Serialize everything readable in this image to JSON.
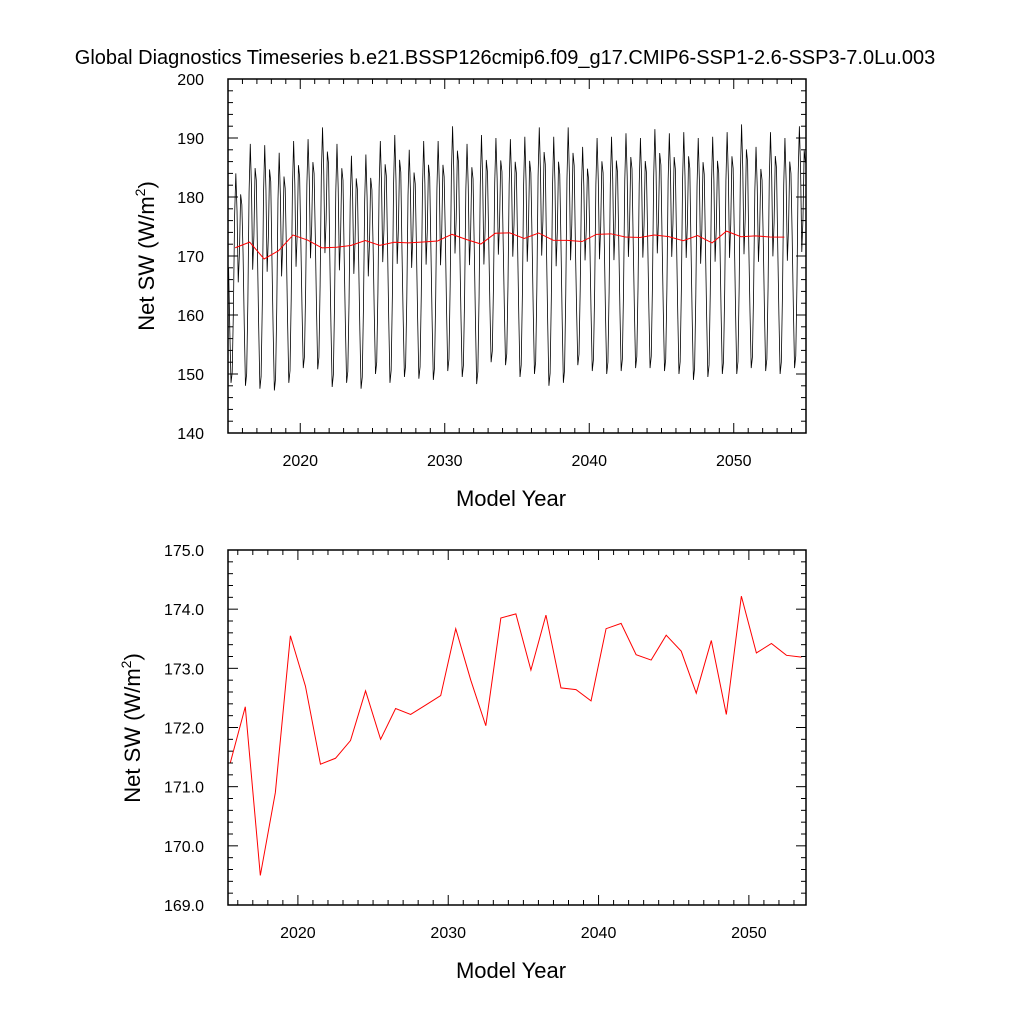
{
  "title": "Global Diagnostics Timeseries b.e21.BSSP126cmip6.f09_g17.CMIP6-SSP1-2.6-SSP3-7.0Lu.003",
  "chart_data": [
    {
      "type": "line",
      "xlabel": "Model Year",
      "ylabel_main": "Net SW (W/m",
      "ylabel_sup": "2",
      "ylabel_tail": ")",
      "xlim": [
        2015,
        2055
      ],
      "ylim": [
        140,
        200
      ],
      "xticks": [
        2020,
        2030,
        2040,
        2050
      ],
      "xtick_labels": [
        "2020",
        "2030",
        "2040",
        "2050"
      ],
      "yticks": [
        140,
        150,
        160,
        170,
        180,
        190,
        200
      ],
      "ytick_labels": [
        "140",
        "150",
        "160",
        "170",
        "180",
        "190",
        "200"
      ],
      "monthly_series": {
        "start_year": 2015,
        "num_years": 40,
        "color": "#000000",
        "annual_max": [
          184.0,
          189.0,
          188.8,
          187.5,
          189.5,
          189.8,
          191.8,
          189.0,
          187.0,
          187.2,
          189.5,
          190.5,
          188.0,
          189.5,
          189.5,
          192.0,
          189.0,
          190.5,
          190.0,
          189.8,
          190.2,
          191.8,
          190.2,
          191.8,
          188.5,
          190.0,
          190.2,
          190.8,
          190.0,
          191.5,
          190.8,
          191.0,
          190.0,
          190.2,
          191.0,
          192.3,
          188.5,
          191.0,
          190.0,
          192.0
        ],
        "annual_min": [
          148.5,
          148.0,
          147.5,
          147.2,
          148.5,
          151.0,
          150.8,
          147.8,
          148.5,
          147.5,
          150.0,
          148.5,
          149.5,
          149.2,
          149.0,
          150.5,
          149.5,
          148.3,
          152.0,
          151.5,
          149.5,
          150.0,
          148.0,
          148.5,
          151.5,
          150.5,
          150.0,
          150.5,
          151.0,
          151.0,
          150.5,
          150.0,
          149.0,
          149.5,
          150.0,
          150.0,
          151.0,
          150.5,
          150.0,
          151.0
        ]
      },
      "annual_series": {
        "color": "#ff0000",
        "x": [
          2015.5,
          2016.5,
          2017.5,
          2018.5,
          2019.5,
          2020.5,
          2021.5,
          2022.5,
          2023.5,
          2024.5,
          2025.5,
          2026.5,
          2027.5,
          2028.5,
          2029.5,
          2030.5,
          2031.5,
          2032.5,
          2033.5,
          2034.5,
          2035.5,
          2036.5,
          2037.5,
          2038.5,
          2039.5,
          2040.5,
          2041.5,
          2042.5,
          2043.5,
          2044.5,
          2045.5,
          2046.5,
          2047.5,
          2048.5,
          2049.5,
          2050.5,
          2051.5,
          2052.5,
          2053.5
        ],
        "y": [
          171.4,
          172.35,
          169.5,
          170.9,
          173.55,
          172.7,
          171.38,
          171.48,
          171.78,
          172.62,
          171.8,
          172.32,
          172.22,
          172.38,
          172.54,
          173.67,
          172.8,
          172.03,
          173.85,
          173.92,
          172.97,
          173.9,
          172.67,
          172.64,
          172.45,
          173.67,
          173.76,
          173.23,
          173.14,
          173.56,
          173.29,
          172.58,
          173.47,
          172.22,
          174.22,
          173.26,
          173.42,
          173.22,
          173.19
        ]
      }
    },
    {
      "type": "line",
      "xlabel": "Model Year",
      "ylabel_main": "Net SW (W/m",
      "ylabel_sup": "2",
      "ylabel_tail": ")",
      "xlim": [
        2015.35,
        2053.8
      ],
      "ylim": [
        169,
        175
      ],
      "xticks": [
        2020,
        2030,
        2040,
        2050
      ],
      "xtick_labels": [
        "2020",
        "2030",
        "2040",
        "2050"
      ],
      "yticks": [
        169,
        170,
        171,
        172,
        173,
        174,
        175
      ],
      "ytick_labels": [
        "169.0",
        "170.0",
        "171.0",
        "172.0",
        "173.0",
        "174.0",
        "175.0"
      ],
      "annual_series": {
        "color": "#ff0000",
        "x": [
          2015.5,
          2016.5,
          2017.5,
          2018.5,
          2019.5,
          2020.5,
          2021.5,
          2022.5,
          2023.5,
          2024.5,
          2025.5,
          2026.5,
          2027.5,
          2028.5,
          2029.5,
          2030.5,
          2031.5,
          2032.5,
          2033.5,
          2034.5,
          2035.5,
          2036.5,
          2037.5,
          2038.5,
          2039.5,
          2040.5,
          2041.5,
          2042.5,
          2043.5,
          2044.5,
          2045.5,
          2046.5,
          2047.5,
          2048.5,
          2049.5,
          2050.5,
          2051.5,
          2052.5,
          2053.5
        ],
        "y": [
          171.4,
          172.35,
          169.5,
          170.9,
          173.55,
          172.7,
          171.38,
          171.48,
          171.78,
          172.62,
          171.8,
          172.32,
          172.22,
          172.38,
          172.54,
          173.67,
          172.8,
          172.03,
          173.85,
          173.92,
          172.97,
          173.9,
          172.67,
          172.64,
          172.45,
          173.67,
          173.76,
          173.23,
          173.14,
          173.56,
          173.29,
          172.58,
          173.47,
          172.22,
          174.22,
          173.26,
          173.42,
          173.22,
          173.19
        ]
      }
    }
  ]
}
